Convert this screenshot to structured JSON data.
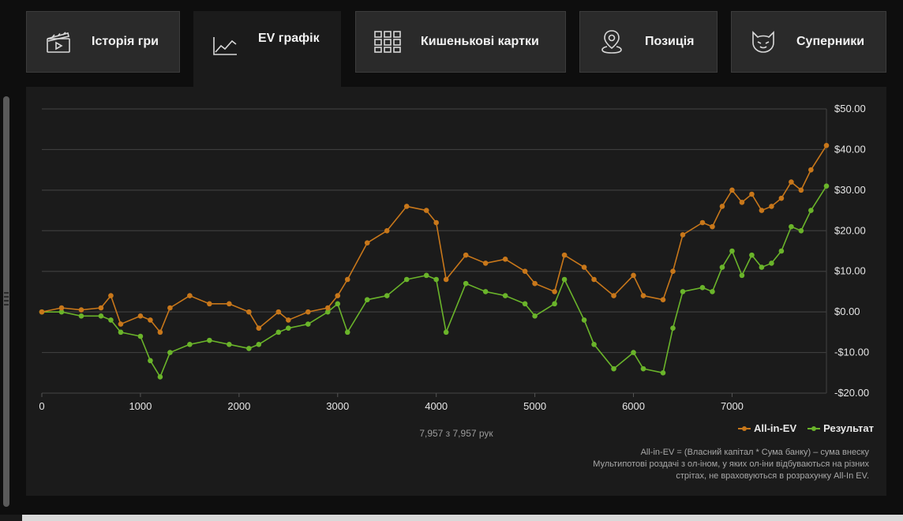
{
  "tabs": [
    {
      "label": "Історія гри",
      "icon": "clapperboard-icon",
      "active": false
    },
    {
      "label": "EV графік",
      "icon": "line-chart-icon",
      "active": true
    },
    {
      "label": "Кишенькові картки",
      "icon": "grid-icon",
      "active": false
    },
    {
      "label": "Позиція",
      "icon": "location-pin-icon",
      "active": false
    },
    {
      "label": "Суперники",
      "icon": "cat-face-icon",
      "active": false
    }
  ],
  "chart_data": {
    "type": "line",
    "title": "",
    "xlabel": "",
    "ylabel": "",
    "xlim": [
      0,
      7957
    ],
    "ylim": [
      -20,
      50
    ],
    "x_ticks": [
      0,
      1000,
      2000,
      3000,
      4000,
      5000,
      6000,
      7000
    ],
    "x_tick_labels": [
      "0",
      "1000",
      "2000",
      "3000",
      "4000",
      "5000",
      "6000",
      "7000"
    ],
    "y_ticks": [
      50,
      40,
      30,
      20,
      10,
      0,
      -10,
      -20
    ],
    "y_tick_labels": [
      "$50.00",
      "$40.00",
      "$30.00",
      "$20.00",
      "$10.00",
      "$0.00",
      "-$10.00",
      "-$20.00"
    ],
    "y_axis_side": "right",
    "grid": true,
    "legend_position": "bottom-right",
    "series": [
      {
        "name": "All-in-EV",
        "color": "#c8771a",
        "x": [
          0,
          200,
          400,
          600,
          700,
          800,
          1000,
          1100,
          1200,
          1300,
          1500,
          1700,
          1900,
          2100,
          2200,
          2400,
          2500,
          2700,
          2900,
          3000,
          3100,
          3300,
          3500,
          3700,
          3900,
          4000,
          4100,
          4300,
          4500,
          4700,
          4900,
          5000,
          5200,
          5300,
          5500,
          5600,
          5800,
          6000,
          6100,
          6300,
          6400,
          6500,
          6700,
          6800,
          6900,
          7000,
          7100,
          7200,
          7300,
          7400,
          7500,
          7600,
          7700,
          7800,
          7957
        ],
        "values": [
          0,
          1,
          0.5,
          1,
          4,
          -3,
          -1,
          -2,
          -5,
          1,
          4,
          2,
          2,
          0,
          -4,
          0,
          -2,
          0,
          1,
          4,
          8,
          17,
          20,
          26,
          25,
          22,
          8,
          14,
          12,
          13,
          10,
          7,
          5,
          14,
          11,
          8,
          4,
          9,
          4,
          3,
          10,
          19,
          22,
          21,
          26,
          30,
          27,
          29,
          25,
          26,
          28,
          32,
          30,
          35,
          41
        ]
      },
      {
        "name": "Результат",
        "color": "#6ab42a",
        "x": [
          0,
          200,
          400,
          600,
          700,
          800,
          1000,
          1100,
          1200,
          1300,
          1500,
          1700,
          1900,
          2100,
          2200,
          2400,
          2500,
          2700,
          2900,
          3000,
          3100,
          3300,
          3500,
          3700,
          3900,
          4000,
          4100,
          4300,
          4500,
          4700,
          4900,
          5000,
          5200,
          5300,
          5500,
          5600,
          5800,
          6000,
          6100,
          6300,
          6400,
          6500,
          6700,
          6800,
          6900,
          7000,
          7100,
          7200,
          7300,
          7400,
          7500,
          7600,
          7700,
          7800,
          7957
        ],
        "values": [
          0,
          0,
          -1,
          -1,
          -2,
          -5,
          -6,
          -12,
          -16,
          -10,
          -8,
          -7,
          -8,
          -9,
          -8,
          -5,
          -4,
          -3,
          0,
          2,
          -5,
          3,
          4,
          8,
          9,
          8,
          -5,
          7,
          5,
          4,
          2,
          -1,
          2,
          8,
          -2,
          -8,
          -14,
          -10,
          -14,
          -15,
          -4,
          5,
          6,
          5,
          11,
          15,
          9,
          14,
          11,
          12,
          15,
          21,
          20,
          25,
          31
        ]
      }
    ]
  },
  "hands_counter": "7,957 з 7,957 рук",
  "legend": {
    "ev_label": "All-in-EV",
    "result_label": "Результат",
    "ev_color": "#c8771a",
    "result_color": "#6ab42a"
  },
  "note": {
    "line1": "All-in-EV = (Власний капітал * Сума банку) – сума внеску",
    "line2": "Мультипотові роздачі з ол-іном, у яких ол-іни відбуваються на різних",
    "line3": "стрітах, не враховуються в розрахунку All-In EV."
  }
}
